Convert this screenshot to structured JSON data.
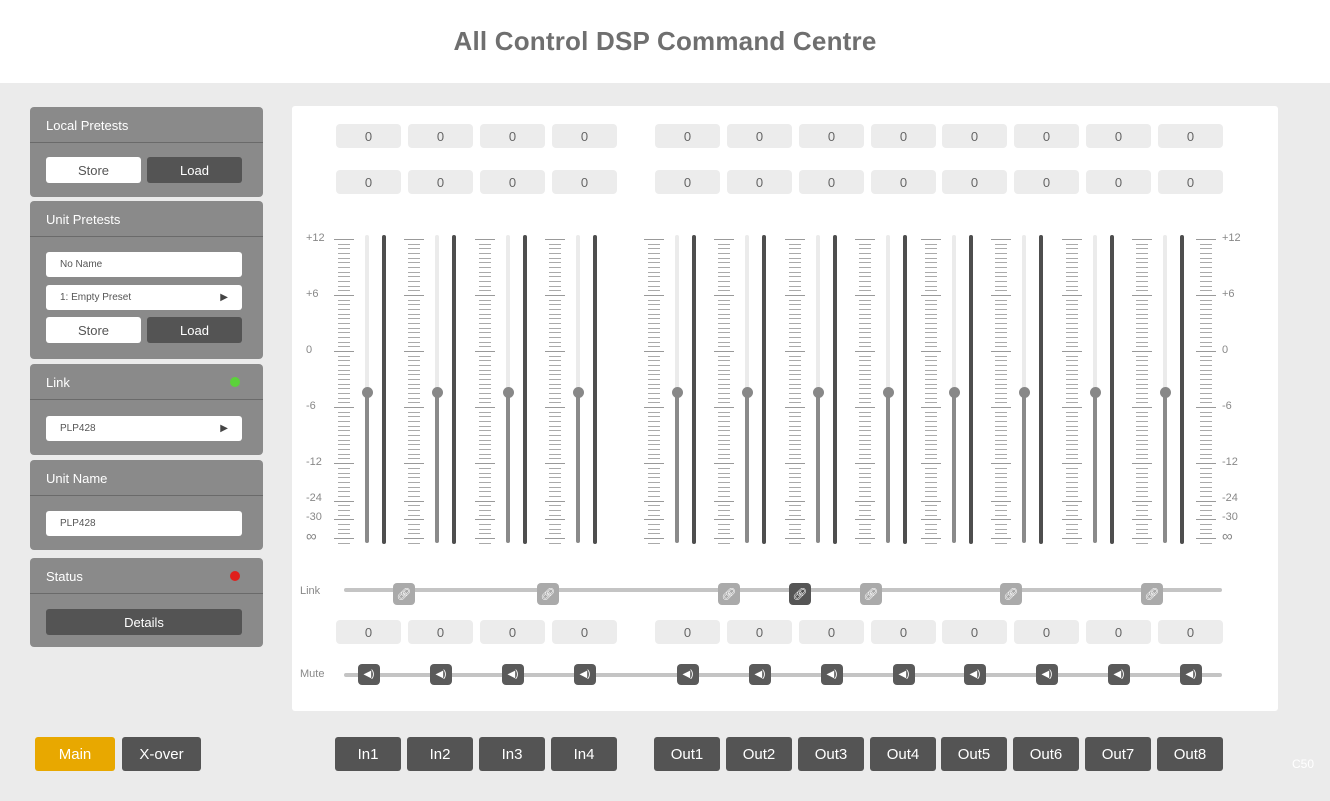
{
  "title": "All Control DSP Command Centre",
  "local_presets": {
    "title": "Local Pretests",
    "store": "Store",
    "load": "Load"
  },
  "unit_presets": {
    "title": "Unit Pretests",
    "name_value": "No Name",
    "preset_value": "1: Empty Preset",
    "store": "Store",
    "load": "Load"
  },
  "link_card": {
    "title": "Link",
    "status_color": "#5bd23a",
    "device": "PLP428"
  },
  "unit_name": {
    "title": "Unit Name",
    "value": "PLP428"
  },
  "status": {
    "title": "Status",
    "status_color": "#e0201c",
    "details": "Details"
  },
  "scale_labels": [
    "+12",
    "+6",
    "0",
    "-6",
    "-12",
    "-24",
    "-30",
    "∞"
  ],
  "channels": {
    "inputs": [
      {
        "name": "In1",
        "top": "0",
        "mid": "0",
        "bottom": "0",
        "level_db": -4.5
      },
      {
        "name": "In2",
        "top": "0",
        "mid": "0",
        "bottom": "0",
        "level_db": -4.5
      },
      {
        "name": "In3",
        "top": "0",
        "mid": "0",
        "bottom": "0",
        "level_db": -4.5
      },
      {
        "name": "In4",
        "top": "0",
        "mid": "0",
        "bottom": "0",
        "level_db": -4.5
      }
    ],
    "outputs": [
      {
        "name": "Out1",
        "top": "0",
        "mid": "0",
        "bottom": "0",
        "level_db": -4.5
      },
      {
        "name": "Out2",
        "top": "0",
        "mid": "0",
        "bottom": "0",
        "level_db": -4.5
      },
      {
        "name": "Out3",
        "top": "0",
        "mid": "0",
        "bottom": "0",
        "level_db": -4.5
      },
      {
        "name": "Out4",
        "top": "0",
        "mid": "0",
        "bottom": "0",
        "level_db": -4.5
      },
      {
        "name": "Out5",
        "top": "0",
        "mid": "0",
        "bottom": "0",
        "level_db": -4.5
      },
      {
        "name": "Out6",
        "top": "0",
        "mid": "0",
        "bottom": "0",
        "level_db": -4.5
      },
      {
        "name": "Out7",
        "top": "0",
        "mid": "0",
        "bottom": "0",
        "level_db": -4.5
      },
      {
        "name": "Out8",
        "top": "0",
        "mid": "0",
        "bottom": "0",
        "level_db": -4.5
      }
    ]
  },
  "link_row": {
    "label": "Link",
    "links": [
      {
        "between": "In1-In2",
        "active": false
      },
      {
        "between": "In3-In4",
        "active": false
      },
      {
        "between": "Out1-Out2",
        "active": false
      },
      {
        "between": "Out2-Out3",
        "active": true
      },
      {
        "between": "Out3-Out4",
        "active": false
      },
      {
        "between": "Out5-Out6",
        "active": false
      },
      {
        "between": "Out7-Out8",
        "active": false
      }
    ]
  },
  "mute_row": {
    "label": "Mute"
  },
  "nav": {
    "main": "Main",
    "xover": "X-over",
    "accent": "#e8a800"
  },
  "footer_code": "C50"
}
